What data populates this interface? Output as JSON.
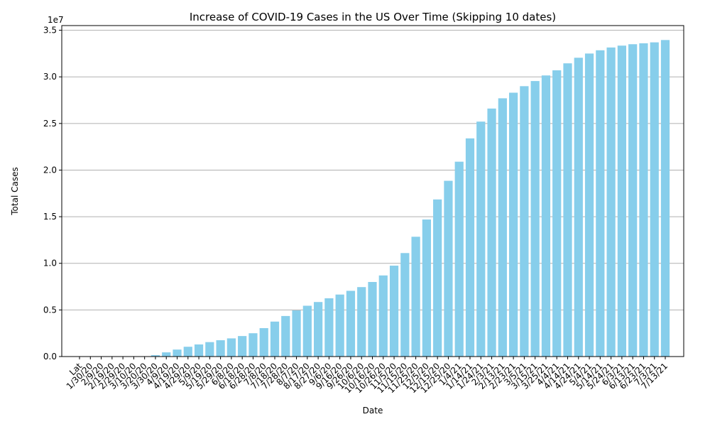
{
  "chart_data": {
    "type": "bar",
    "title": "Increase of COVID-19 Cases in the US Over Time (Skipping 10 dates)",
    "xlabel": "Date",
    "ylabel": "Total Cases",
    "y_scale_label": "1e7",
    "ylim": [
      0,
      35500000
    ],
    "yticks": [
      0,
      5000000,
      10000000,
      15000000,
      20000000,
      25000000,
      30000000,
      35000000
    ],
    "ytick_labels": [
      "0.0",
      "0.5",
      "1.0",
      "1.5",
      "2.0",
      "2.5",
      "3.0",
      "3.5"
    ],
    "grid": "y",
    "bar_color": "#87CEEB",
    "categories": [
      "Lat",
      "1/30/20",
      "2/9/20",
      "2/19/20",
      "2/29/20",
      "3/10/20",
      "3/20/20",
      "3/30/20",
      "4/9/20",
      "4/19/20",
      "4/29/20",
      "5/9/20",
      "5/19/20",
      "5/29/20",
      "6/8/20",
      "6/18/20",
      "6/28/20",
      "7/8/20",
      "7/18/20",
      "7/28/20",
      "8/7/20",
      "8/17/20",
      "8/27/20",
      "9/6/20",
      "9/16/20",
      "9/26/20",
      "10/6/20",
      "10/16/20",
      "10/26/20",
      "11/5/20",
      "11/15/20",
      "11/25/20",
      "12/5/20",
      "12/15/20",
      "12/25/20",
      "1/4/21",
      "1/14/21",
      "1/24/21",
      "2/3/21",
      "2/13/21",
      "2/23/21",
      "3/5/21",
      "3/15/21",
      "3/25/21",
      "4/4/21",
      "4/14/21",
      "4/24/21",
      "5/4/21",
      "5/14/21",
      "5/24/21",
      "6/3/21",
      "6/13/21",
      "6/23/21",
      "7/3/21",
      "7/13/21"
    ],
    "values": [
      0,
      10,
      15,
      20,
      70,
      1000,
      20000,
      150000,
      450000,
      750000,
      1050000,
      1300000,
      1550000,
      1750000,
      1950000,
      2200000,
      2500000,
      3050000,
      3750000,
      4350000,
      4950000,
      5450000,
      5850000,
      6250000,
      6650000,
      7050000,
      7450000,
      8000000,
      8700000,
      9750000,
      11100000,
      12850000,
      14700000,
      16850000,
      18850000,
      20900000,
      23400000,
      25200000,
      26600000,
      27700000,
      28300000,
      29000000,
      29550000,
      30150000,
      30700000,
      31450000,
      32050000,
      32500000,
      32850000,
      33150000,
      33350000,
      33500000,
      33600000,
      33700000,
      33950000
    ]
  }
}
